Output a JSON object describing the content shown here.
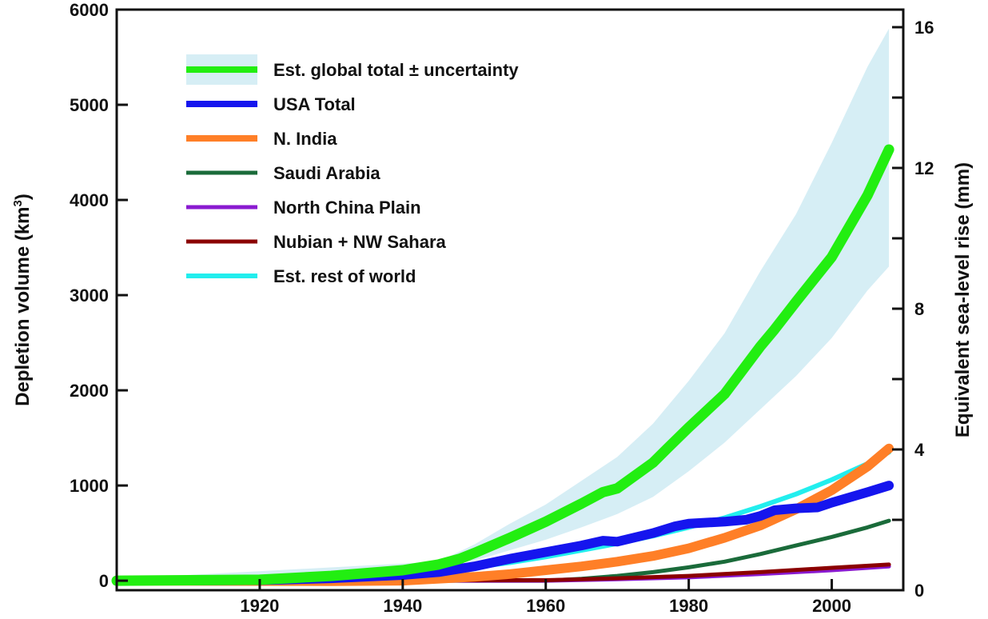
{
  "chart_data": {
    "type": "line",
    "ylabel_left": "Depletion volume (km",
    "ylabel_left_sup": "3",
    "ylabel_left_end": ")",
    "ylabel_right": "Equivalent sea-level rise (mm)",
    "xlim": [
      1900,
      2010
    ],
    "ylim_left": [
      -100,
      6000
    ],
    "ylim_right": [
      0,
      16.5
    ],
    "x_ticks": [
      1920,
      1940,
      1960,
      1980,
      2000
    ],
    "y_ticks_left": [
      0,
      1000,
      2000,
      3000,
      4000,
      5000,
      6000
    ],
    "y_ticks_right": [
      0,
      4,
      8,
      12,
      16
    ],
    "legend_position": "top-left",
    "uncertainty_band": {
      "name": "Est. global total ± uncertainty",
      "color": "#d6eef5",
      "x": [
        1900,
        1945,
        1950,
        1955,
        1960,
        1965,
        1970,
        1975,
        1980,
        1985,
        1990,
        1995,
        2000,
        2005,
        2008
      ],
      "upper": [
        20,
        200,
        380,
        600,
        800,
        1050,
        1300,
        1650,
        2100,
        2600,
        3250,
        3850,
        4600,
        5400,
        5800
      ],
      "lower": [
        0,
        140,
        210,
        320,
        430,
        560,
        700,
        880,
        1150,
        1450,
        1800,
        2150,
        2550,
        3050,
        3300
      ]
    },
    "series": [
      {
        "name": "Est. global total ± uncertainty",
        "color": "#22ee11",
        "width": 13,
        "x": [
          1900,
          1920,
          1930,
          1940,
          1945,
          1948,
          1950,
          1955,
          1960,
          1965,
          1968,
          1970,
          1975,
          1977,
          1980,
          1985,
          1990,
          1992,
          1995,
          2000,
          2005,
          2008
        ],
        "y": [
          0,
          10,
          50,
          110,
          170,
          230,
          290,
          450,
          620,
          810,
          930,
          970,
          1240,
          1390,
          1610,
          1960,
          2460,
          2640,
          2930,
          3400,
          4050,
          4530
        ]
      },
      {
        "name": "USA Total",
        "color": "#1515ee",
        "width": 12,
        "x": [
          1900,
          1920,
          1930,
          1940,
          1945,
          1950,
          1955,
          1960,
          1965,
          1968,
          1970,
          1975,
          1978,
          1980,
          1985,
          1988,
          1990,
          1992,
          1995,
          1998,
          2000,
          2005,
          2008
        ],
        "y": [
          0,
          5,
          25,
          60,
          90,
          150,
          230,
          300,
          370,
          420,
          410,
          500,
          570,
          600,
          620,
          640,
          680,
          740,
          760,
          770,
          820,
          930,
          1000
        ]
      },
      {
        "name": "N. India",
        "color": "#ff7f27",
        "width": 12,
        "x": [
          1900,
          1930,
          1940,
          1950,
          1955,
          1960,
          1965,
          1970,
          1975,
          1980,
          1985,
          1990,
          1995,
          2000,
          2005,
          2008
        ],
        "y": [
          0,
          -5,
          0,
          40,
          70,
          110,
          150,
          200,
          260,
          340,
          450,
          580,
          750,
          950,
          1200,
          1390
        ]
      },
      {
        "name": "Saudi Arabia",
        "color": "#1a6b3a",
        "width": 5,
        "x": [
          1900,
          1960,
          1965,
          1970,
          1975,
          1980,
          1985,
          1990,
          1995,
          2000,
          2005,
          2008
        ],
        "y": [
          0,
          0,
          20,
          50,
          90,
          140,
          200,
          280,
          370,
          460,
          560,
          630
        ]
      },
      {
        "name": "North China Plain",
        "color": "#8a1ad0",
        "width": 5,
        "x": [
          1900,
          1960,
          1970,
          1980,
          1990,
          2000,
          2008
        ],
        "y": [
          0,
          0,
          15,
          35,
          70,
          110,
          150
        ]
      },
      {
        "name": "Nubian + NW Sahara",
        "color": "#8b0000",
        "width": 5,
        "x": [
          1900,
          1960,
          1970,
          1980,
          1990,
          2000,
          2008
        ],
        "y": [
          0,
          5,
          25,
          50,
          90,
          135,
          170
        ]
      },
      {
        "name": "Est. rest of world",
        "color": "#22eeee",
        "width": 6,
        "x": [
          1900,
          1930,
          1940,
          1945,
          1950,
          1955,
          1960,
          1965,
          1970,
          1975,
          1980,
          1985,
          1990,
          1995,
          2000,
          2005,
          2008
        ],
        "y": [
          0,
          20,
          60,
          100,
          140,
          190,
          250,
          320,
          390,
          470,
          560,
          660,
          780,
          910,
          1060,
          1230,
          1350
        ]
      }
    ],
    "draw_order": [
      3,
      4,
      5,
      6,
      2,
      1,
      0
    ]
  }
}
